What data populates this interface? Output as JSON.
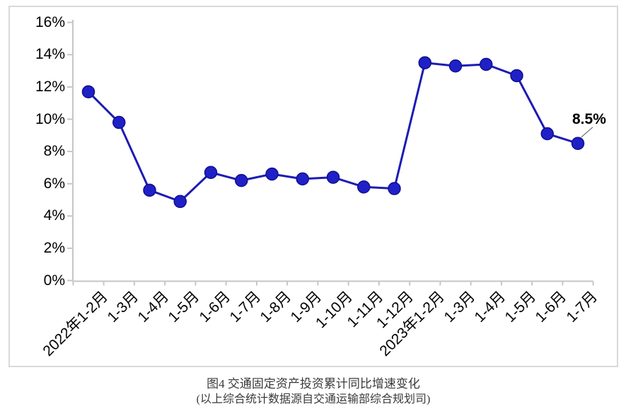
{
  "chart_data": {
    "type": "line",
    "categories": [
      "2022年1-2月",
      "1-3月",
      "1-4月",
      "1-5月",
      "1-6月",
      "1-7月",
      "1-8月",
      "1-9月",
      "1-10月",
      "1-11月",
      "1-12月",
      "2023年1-2月",
      "1-3月",
      "1-4月",
      "1-5月",
      "1-6月",
      "1-7月"
    ],
    "series": [
      {
        "name": "交通固定资产投资累计同比增速",
        "values": [
          11.7,
          9.8,
          5.6,
          4.9,
          6.7,
          6.2,
          6.6,
          6.3,
          6.4,
          5.8,
          5.7,
          13.5,
          13.3,
          13.4,
          12.7,
          9.1,
          8.5
        ]
      }
    ],
    "ytick_labels": [
      "0%",
      "2%",
      "4%",
      "6%",
      "8%",
      "10%",
      "12%",
      "14%",
      "16%"
    ],
    "ylim": [
      0,
      16
    ],
    "ytick_step": 2,
    "grid": "off",
    "legend": "none",
    "annotation": {
      "text": "8.5%",
      "point_index": 16
    },
    "colors": {
      "line": "#1c1cb4",
      "marker_fill": "#2020c8",
      "marker_stroke": "#10108e",
      "axis": "#c6c6c6",
      "frame_border": "#d9d9d9",
      "annotation_text": "#000000",
      "leader_line": "#555555"
    }
  },
  "caption": {
    "line1": "图4  交通固定资产投资累计同比增速变化",
    "line2": "(以上综合统计数据源自交通运输部综合规划司)"
  }
}
